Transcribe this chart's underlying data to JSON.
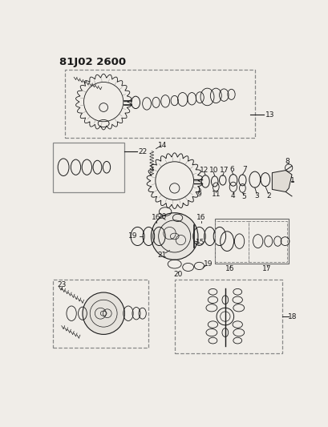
{
  "title": "81J02 2600",
  "bg_color": "#f0ede8",
  "line_color": "#1a1a1a",
  "title_fontsize": 9,
  "label_fontsize": 6.5
}
